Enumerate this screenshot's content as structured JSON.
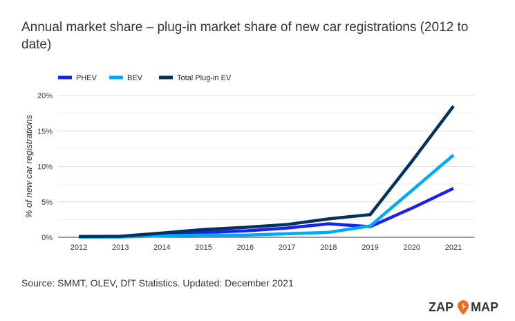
{
  "title": "Annual market share – plug-in market share of new car registrations (2012 to date)",
  "source": "Source: SMMT, OLEV, DfT Statistics. Updated: December 2021",
  "logo": "ZAP MAP",
  "chart_data": {
    "type": "line",
    "ylabel": "% of new car registrations",
    "categories": [
      "2012",
      "2013",
      "2014",
      "2015",
      "2016",
      "2017",
      "2018",
      "2019",
      "2020",
      "2021"
    ],
    "yticks": [
      "0%",
      "5%",
      "10%",
      "15%",
      "20%"
    ],
    "ylim": [
      0,
      20
    ],
    "grid": true,
    "legend": "top-left",
    "series": [
      {
        "name": "PHEV",
        "color": "#1a22f0",
        "values": [
          0.1,
          0.1,
          0.4,
          0.7,
          0.9,
          1.3,
          1.9,
          1.5,
          4.1,
          6.9
        ]
      },
      {
        "name": "BEV",
        "color": "#00aaf8",
        "values": [
          0.05,
          0.05,
          0.2,
          0.3,
          0.3,
          0.5,
          0.7,
          1.6,
          6.6,
          11.6
        ]
      },
      {
        "name": "Total Plug-in EV",
        "color": "#04325e",
        "values": [
          0.1,
          0.15,
          0.6,
          1.1,
          1.4,
          1.8,
          2.6,
          3.2,
          10.7,
          18.5
        ]
      }
    ]
  }
}
